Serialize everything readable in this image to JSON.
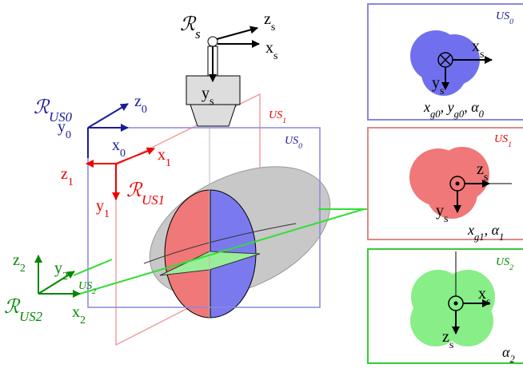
{
  "sensor": {
    "frame": {
      "main": "ℛ",
      "sub": "s"
    },
    "z": {
      "main": "z",
      "sub": "s"
    },
    "x": {
      "main": "x",
      "sub": "s"
    },
    "y": {
      "main": "y",
      "sub": "s"
    }
  },
  "frame0": {
    "frame": {
      "main": "ℛ",
      "sub": "US0"
    },
    "z": {
      "main": "z",
      "sub": "0"
    },
    "y": {
      "main": "y",
      "sub": "0"
    },
    "x": {
      "main": "x",
      "sub": "0"
    }
  },
  "frame1": {
    "frame": {
      "main": "ℛ",
      "sub": "US1"
    },
    "x": {
      "main": "x",
      "sub": "1"
    },
    "z": {
      "main": "z",
      "sub": "1"
    },
    "y": {
      "main": "y",
      "sub": "1"
    }
  },
  "frame2": {
    "frame": {
      "main": "ℛ",
      "sub": "US2"
    },
    "z": {
      "main": "z",
      "sub": "2"
    },
    "y": {
      "main": "y",
      "sub": "2"
    },
    "x": {
      "main": "x",
      "sub": "2"
    }
  },
  "planes": {
    "us0": {
      "main": "US",
      "sub": "0"
    },
    "us1": {
      "main": "US",
      "sub": "1"
    },
    "us2": {
      "main": "US",
      "sub": "2"
    }
  },
  "panels": [
    {
      "plane": {
        "main": "US",
        "sub": "0"
      },
      "a": {
        "main": "x",
        "sub": "s"
      },
      "b": {
        "main": "y",
        "sub": "s"
      },
      "caption": [
        {
          "main": "x",
          "sub": "g0"
        },
        {
          "main": ", y",
          "sub": "g0"
        },
        {
          "main": ", α",
          "sub": "0"
        }
      ]
    },
    {
      "plane": {
        "main": "US",
        "sub": "1"
      },
      "a": {
        "main": "z",
        "sub": "s"
      },
      "b": {
        "main": "y",
        "sub": "s"
      },
      "caption": [
        {
          "main": "x",
          "sub": "g1"
        },
        {
          "main": ", α",
          "sub": "1"
        }
      ]
    },
    {
      "plane": {
        "main": "US",
        "sub": "2"
      },
      "a": {
        "main": "x",
        "sub": "s"
      },
      "b": {
        "main": "z",
        "sub": "s"
      },
      "caption": [
        {
          "main": "α",
          "sub": "2"
        }
      ]
    }
  ]
}
